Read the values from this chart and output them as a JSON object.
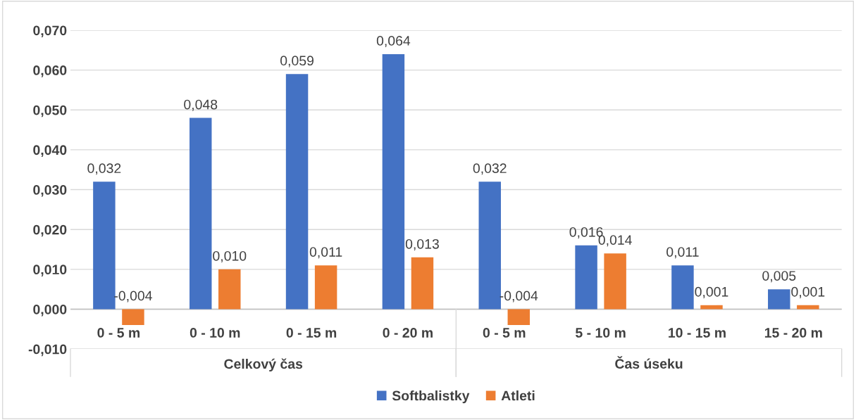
{
  "chart_data": {
    "type": "bar",
    "categories": [
      "0 - 5 m",
      "0 - 10 m",
      "0 - 15 m",
      "0 - 20 m",
      "0 - 5 m",
      "5 - 10 m",
      "10 - 15 m",
      "15 - 20 m"
    ],
    "annotations": [
      "Celkový čas",
      "Čas úseku"
    ],
    "series": [
      {
        "name": "Softbalistky",
        "color": "#4472c4",
        "values": [
          0.032,
          0.048,
          0.059,
          0.064,
          0.032,
          0.016,
          0.011,
          0.005
        ],
        "value_labels": [
          "0,032",
          "0,048",
          "0,059",
          "0,064",
          "0,032",
          "0,016",
          "0,011",
          "0,005"
        ]
      },
      {
        "name": "Atleti",
        "color": "#ed7d31",
        "values": [
          -0.004,
          0.01,
          0.011,
          0.013,
          -0.004,
          0.014,
          0.001,
          0.001
        ],
        "value_labels": [
          "-0,004",
          "0,010",
          "0,011",
          "0,013",
          "-0,004",
          "0,014",
          "0,001",
          "0,001"
        ]
      }
    ],
    "ylim": [
      -0.01,
      0.07
    ],
    "yticks": [
      {
        "value": -0.01,
        "label": "-0,010"
      },
      {
        "value": 0.0,
        "label": "0,000"
      },
      {
        "value": 0.01,
        "label": "0,010"
      },
      {
        "value": 0.02,
        "label": "0,020"
      },
      {
        "value": 0.03,
        "label": "0,030"
      },
      {
        "value": 0.04,
        "label": "0,040"
      },
      {
        "value": 0.05,
        "label": "0,050"
      },
      {
        "value": 0.06,
        "label": "0,060"
      },
      {
        "value": 0.07,
        "label": "0,070"
      }
    ],
    "grid": "y",
    "legend": "bottom"
  }
}
